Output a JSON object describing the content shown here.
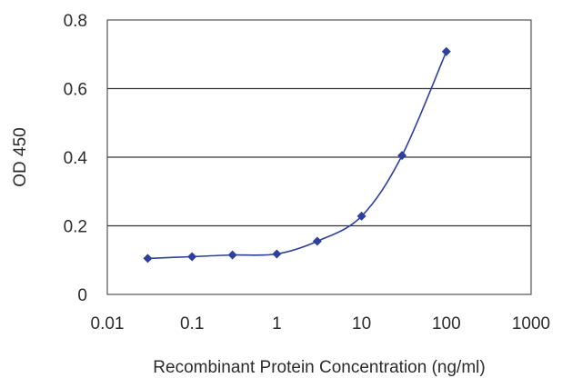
{
  "chart_data": {
    "type": "line",
    "title": "",
    "xlabel": "Recombinant Protein Concentration (ng/ml)",
    "ylabel": "OD 450",
    "x_scale": "log",
    "xlim": [
      0.01,
      1000
    ],
    "ylim": [
      0,
      0.8
    ],
    "x_ticks": [
      "0.01",
      "0.1",
      "1",
      "10",
      "100",
      "1000"
    ],
    "y_ticks": [
      "0",
      "0.2",
      "0.4",
      "0.6",
      "0.8"
    ],
    "grid": "horizontal",
    "legend": "none",
    "series": [
      {
        "color": "#2e3f9e",
        "marker": "diamond",
        "x": [
          0.03,
          0.1,
          0.3,
          1,
          3,
          10,
          30,
          100
        ],
        "y": [
          0.105,
          0.11,
          0.115,
          0.118,
          0.155,
          0.228,
          0.405,
          0.708
        ]
      }
    ]
  }
}
